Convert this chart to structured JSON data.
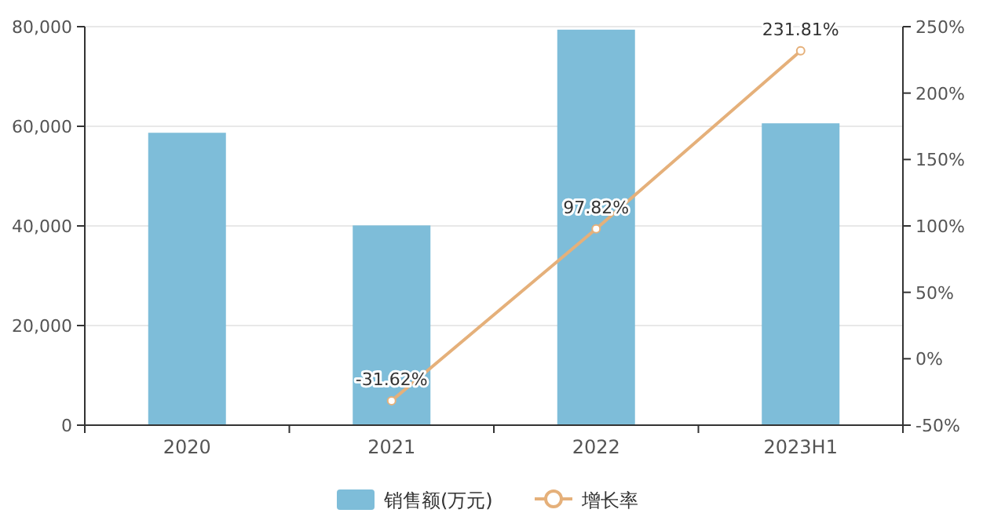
{
  "chart_data": {
    "type": "bar",
    "categories": [
      "2020",
      "2021",
      "2022",
      "2023H1"
    ],
    "series": [
      {
        "name": "销售额(万元)",
        "color": "#7ebdd9",
        "values": [
          58700,
          40100,
          79400,
          60600
        ]
      },
      {
        "name": "增长率",
        "type": "line",
        "axis": "y2",
        "color": "#e5b07a",
        "marker": "circle",
        "line_style": "solid",
        "values": [
          null,
          -31.62,
          97.82,
          231.81
        ],
        "value_labels": [
          null,
          "-31.62%",
          "97.82%",
          "231.81%"
        ]
      }
    ],
    "ylim": [
      0,
      80000
    ],
    "yticks": [
      {
        "value": 0,
        "label": "0"
      },
      {
        "value": 20000,
        "label": "20,000"
      },
      {
        "value": 40000,
        "label": "40,000"
      },
      {
        "value": 60000,
        "label": "60,000"
      },
      {
        "value": 80000,
        "label": "80,000"
      }
    ],
    "y2lim": [
      -50,
      250
    ],
    "y2ticks": [
      {
        "value": -50,
        "label": "-50%"
      },
      {
        "value": 0,
        "label": "0%"
      },
      {
        "value": 50,
        "label": "50%"
      },
      {
        "value": 100,
        "label": "100%"
      },
      {
        "value": 150,
        "label": "150%"
      },
      {
        "value": 200,
        "label": "200%"
      },
      {
        "value": 250,
        "label": "250%"
      }
    ],
    "grid": "y",
    "legend": "bottom"
  }
}
